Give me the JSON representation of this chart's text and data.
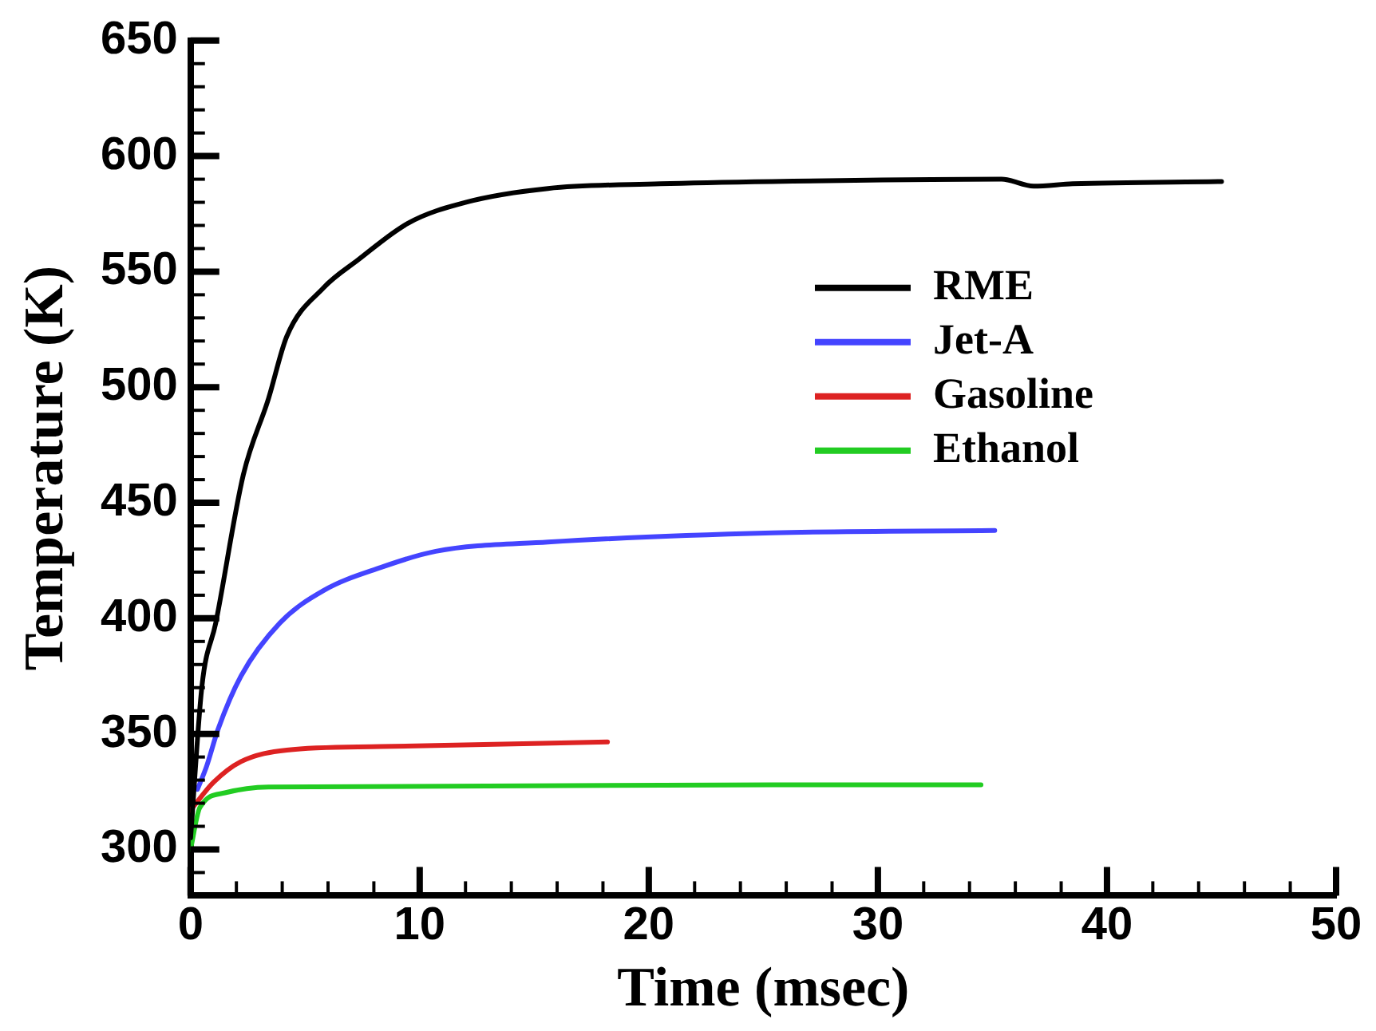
{
  "chart_data": {
    "type": "line",
    "xlabel": "Time (msec)",
    "ylabel": "Temperature (K)",
    "xlim": [
      0,
      50
    ],
    "xticks": [
      0,
      10,
      20,
      30,
      40,
      50
    ],
    "ylim": [
      280,
      650
    ],
    "yticks": [
      300,
      350,
      400,
      450,
      500,
      550,
      600,
      650
    ],
    "grid": false,
    "legend": "top right",
    "marker": "none",
    "line_style": "solid",
    "series": [
      {
        "name": "RME",
        "color": "#000000",
        "x": [
          0,
          0.5,
          1.1,
          2.3,
          3.4,
          4.2,
          5.8,
          7.3,
          9.5,
          12,
          15.6,
          20.5,
          25.4,
          35.4,
          36.8,
          38.5,
          45
        ],
        "values": [
          305,
          371,
          398,
          462,
          495,
          522,
          543,
          555,
          571,
          580,
          586,
          588,
          589,
          590,
          587,
          588,
          589
        ]
      },
      {
        "name": "Jet-A",
        "color": "#4444ff",
        "x": [
          0.3,
          0.7,
          1.2,
          2.2,
          3.9,
          5.8,
          8.3,
          10.7,
          15.6,
          25.4,
          35.1
        ],
        "values": [
          326,
          336,
          352,
          375,
          398,
          412,
          422,
          429,
          433,
          437,
          438
        ]
      },
      {
        "name": "Gasoline",
        "color": "#dd2222",
        "x": [
          0,
          1,
          2.2,
          4.2,
          8.3,
          18.2
        ],
        "values": [
          317,
          329,
          338,
          343,
          344.5,
          346.5
        ]
      },
      {
        "name": "Ethanol",
        "color": "#22cc22",
        "x": [
          0,
          0.4,
          1.5,
          3.4,
          25.4,
          34.5
        ],
        "values": [
          300,
          318,
          324.5,
          327,
          328,
          328
        ]
      }
    ]
  }
}
